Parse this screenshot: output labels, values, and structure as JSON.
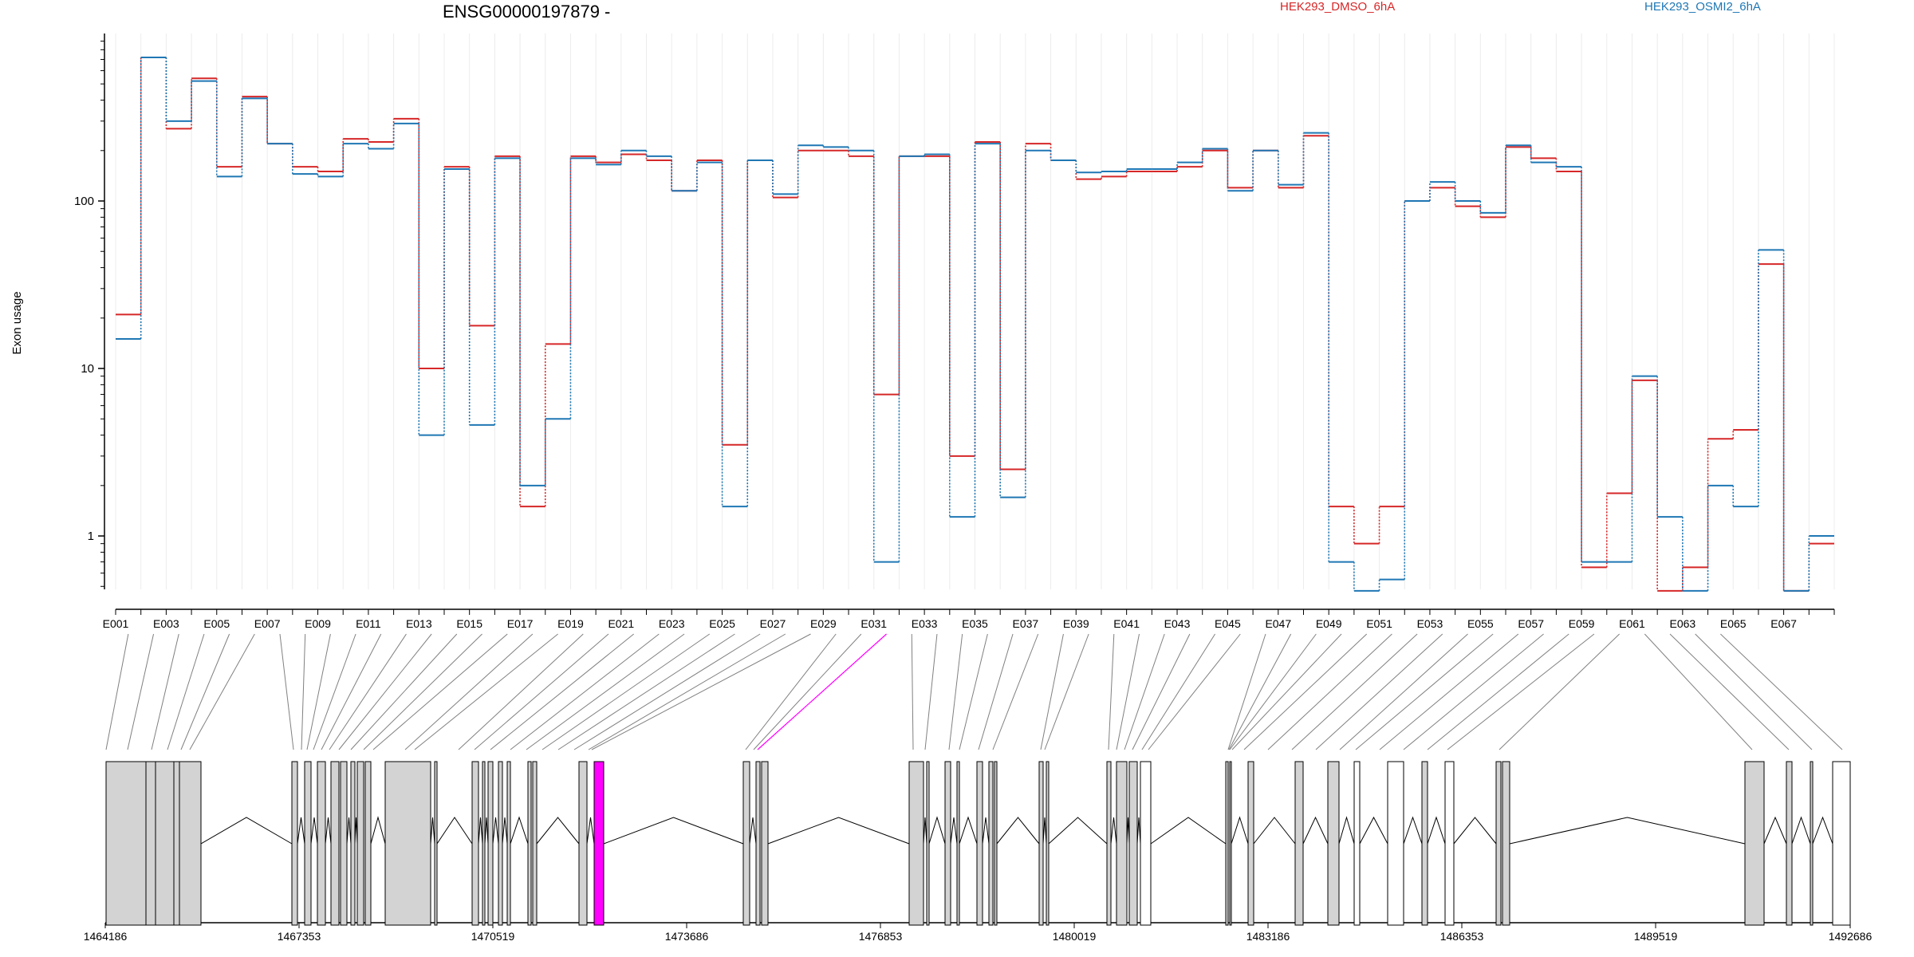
{
  "chart_data": {
    "type": "line",
    "title": "ENSG00000197879 -",
    "ylabel": "Exon usage",
    "y_scale": "log",
    "ylim": [
      0.48,
      1000
    ],
    "y_ticks": [
      1,
      10,
      100
    ],
    "y_tick_labels": [
      "1",
      "10",
      "100"
    ],
    "grid": "vertical",
    "legend_position": "top-right",
    "highlighted_exon": "E031",
    "categories": [
      "E001",
      "E002",
      "E003",
      "E004",
      "E005",
      "E006",
      "E007",
      "E008",
      "E009",
      "E010",
      "E011",
      "E012",
      "E013",
      "E014",
      "E015",
      "E016",
      "E017",
      "E018",
      "E019",
      "E020",
      "E021",
      "E022",
      "E023",
      "E024",
      "E025",
      "E026",
      "E027",
      "E028",
      "E029",
      "E030",
      "E031",
      "E032",
      "E033",
      "E034",
      "E035",
      "E036",
      "E037",
      "E038",
      "E039",
      "E040",
      "E041",
      "E042",
      "E043",
      "E044",
      "E045",
      "E046",
      "E047",
      "E048",
      "E049",
      "E050",
      "E051",
      "E052",
      "E053",
      "E054",
      "E055",
      "E056",
      "E057",
      "E058",
      "E059",
      "E060",
      "E061",
      "E062",
      "E063",
      "E064",
      "E065",
      "E066",
      "E067",
      "E068"
    ],
    "x_tick_labels": [
      "E001",
      "E003",
      "E005",
      "E007",
      "E009",
      "E011",
      "E013",
      "E015",
      "E017",
      "E019",
      "E021",
      "E023",
      "E025",
      "E027",
      "E029",
      "E031",
      "E033",
      "E035",
      "E037",
      "E039",
      "E041",
      "E043",
      "E045",
      "E047",
      "E049",
      "E051",
      "E053",
      "E055",
      "E057",
      "E059",
      "E061",
      "E063",
      "E065",
      "E067"
    ],
    "series": [
      {
        "name": "HEK293_DMSO_6hA",
        "color": "#d62728",
        "values": [
          21,
          720,
          270,
          540,
          160,
          420,
          220,
          160,
          150,
          235,
          225,
          310,
          10,
          160,
          18,
          185,
          1.5,
          14,
          185,
          170,
          190,
          175,
          115,
          175,
          3.5,
          175,
          105,
          200,
          200,
          185,
          7,
          185,
          185,
          3,
          225,
          2.5,
          220,
          175,
          135,
          140,
          150,
          150,
          160,
          200,
          120,
          200,
          120,
          245,
          1.5,
          0.9,
          1.5,
          100,
          120,
          93,
          80,
          210,
          180,
          150,
          0.65,
          1.8,
          8.5,
          0.47,
          0.65,
          3.8,
          4.3,
          42,
          0.47,
          0.9
        ]
      },
      {
        "name": "HEK293_OSMI2_6hA",
        "color": "#1f77b4",
        "values": [
          15,
          720,
          300,
          520,
          140,
          410,
          220,
          145,
          140,
          220,
          205,
          290,
          4,
          155,
          4.6,
          180,
          2,
          5,
          180,
          165,
          200,
          185,
          115,
          170,
          1.5,
          175,
          110,
          215,
          210,
          200,
          0.7,
          185,
          190,
          1.3,
          220,
          1.7,
          200,
          175,
          148,
          150,
          155,
          155,
          170,
          205,
          115,
          200,
          125,
          255,
          0.7,
          0.47,
          0.55,
          100,
          130,
          100,
          85,
          215,
          170,
          160,
          0.7,
          0.7,
          9,
          1.3,
          0.47,
          2,
          1.5,
          51,
          0.47,
          1
        ]
      }
    ]
  },
  "gene_model": {
    "coordinate_labels": [
      "1464186",
      "1467353",
      "1470519",
      "1473686",
      "1476853",
      "1480019",
      "1483186",
      "1486353",
      "1489519",
      "1492686"
    ],
    "highlight_color": "#ff00ff",
    "exon_fill": "#d3d3d3",
    "exon_empty_fill": "#ffffff"
  }
}
